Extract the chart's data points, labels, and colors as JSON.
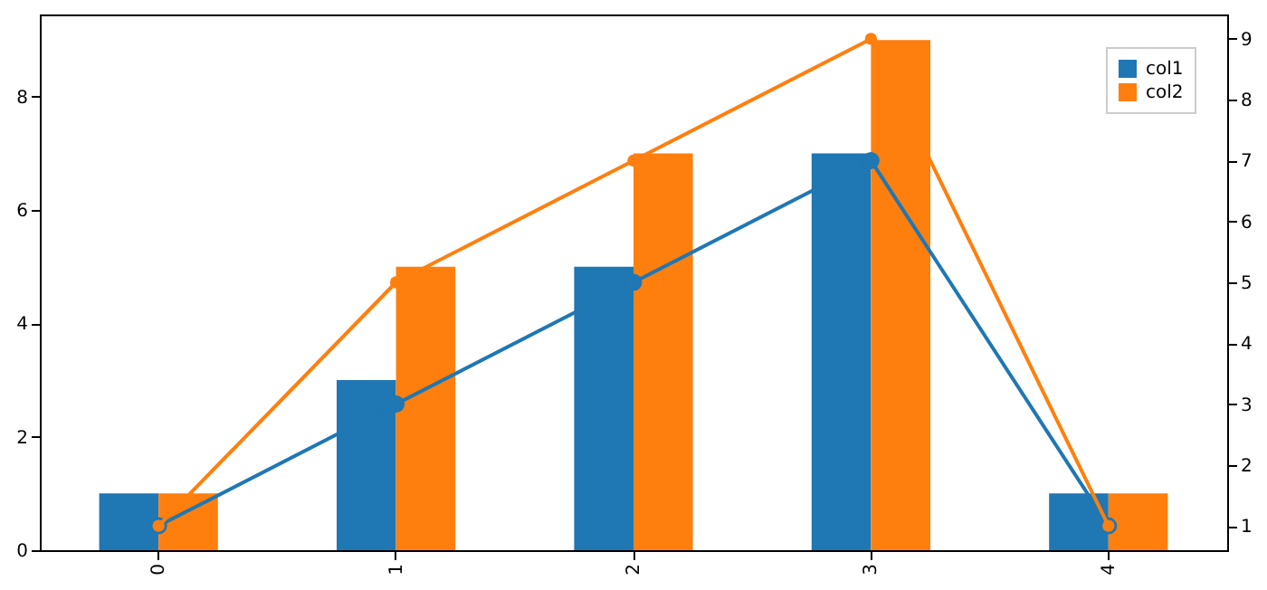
{
  "chart_data": {
    "type": "bar",
    "categories": [
      "0",
      "1",
      "2",
      "3",
      "4"
    ],
    "series": [
      {
        "name": "col1",
        "color": "#1f77b4",
        "values": [
          1,
          3,
          5,
          7,
          1
        ]
      },
      {
        "name": "col2",
        "color": "#ff7f0e",
        "values": [
          1,
          5,
          7,
          9,
          1
        ]
      },
      {
        "type": "line",
        "axis": "y2",
        "color": "#1f77b4",
        "marker": "circle",
        "values": [
          1,
          3,
          5,
          7,
          1
        ]
      },
      {
        "type": "line",
        "axis": "y2",
        "color": "#ff7f0e",
        "marker": "circle",
        "values": [
          1,
          5,
          7,
          9,
          1
        ]
      }
    ],
    "ylim": [
      0,
      9.45
    ],
    "yticks": [
      0,
      2,
      4,
      6,
      8
    ],
    "y2lim": [
      0.6,
      9.4
    ],
    "y2ticks": [
      1,
      2,
      3,
      4,
      5,
      6,
      7,
      8,
      9
    ],
    "grid": false,
    "legend": "top right"
  }
}
